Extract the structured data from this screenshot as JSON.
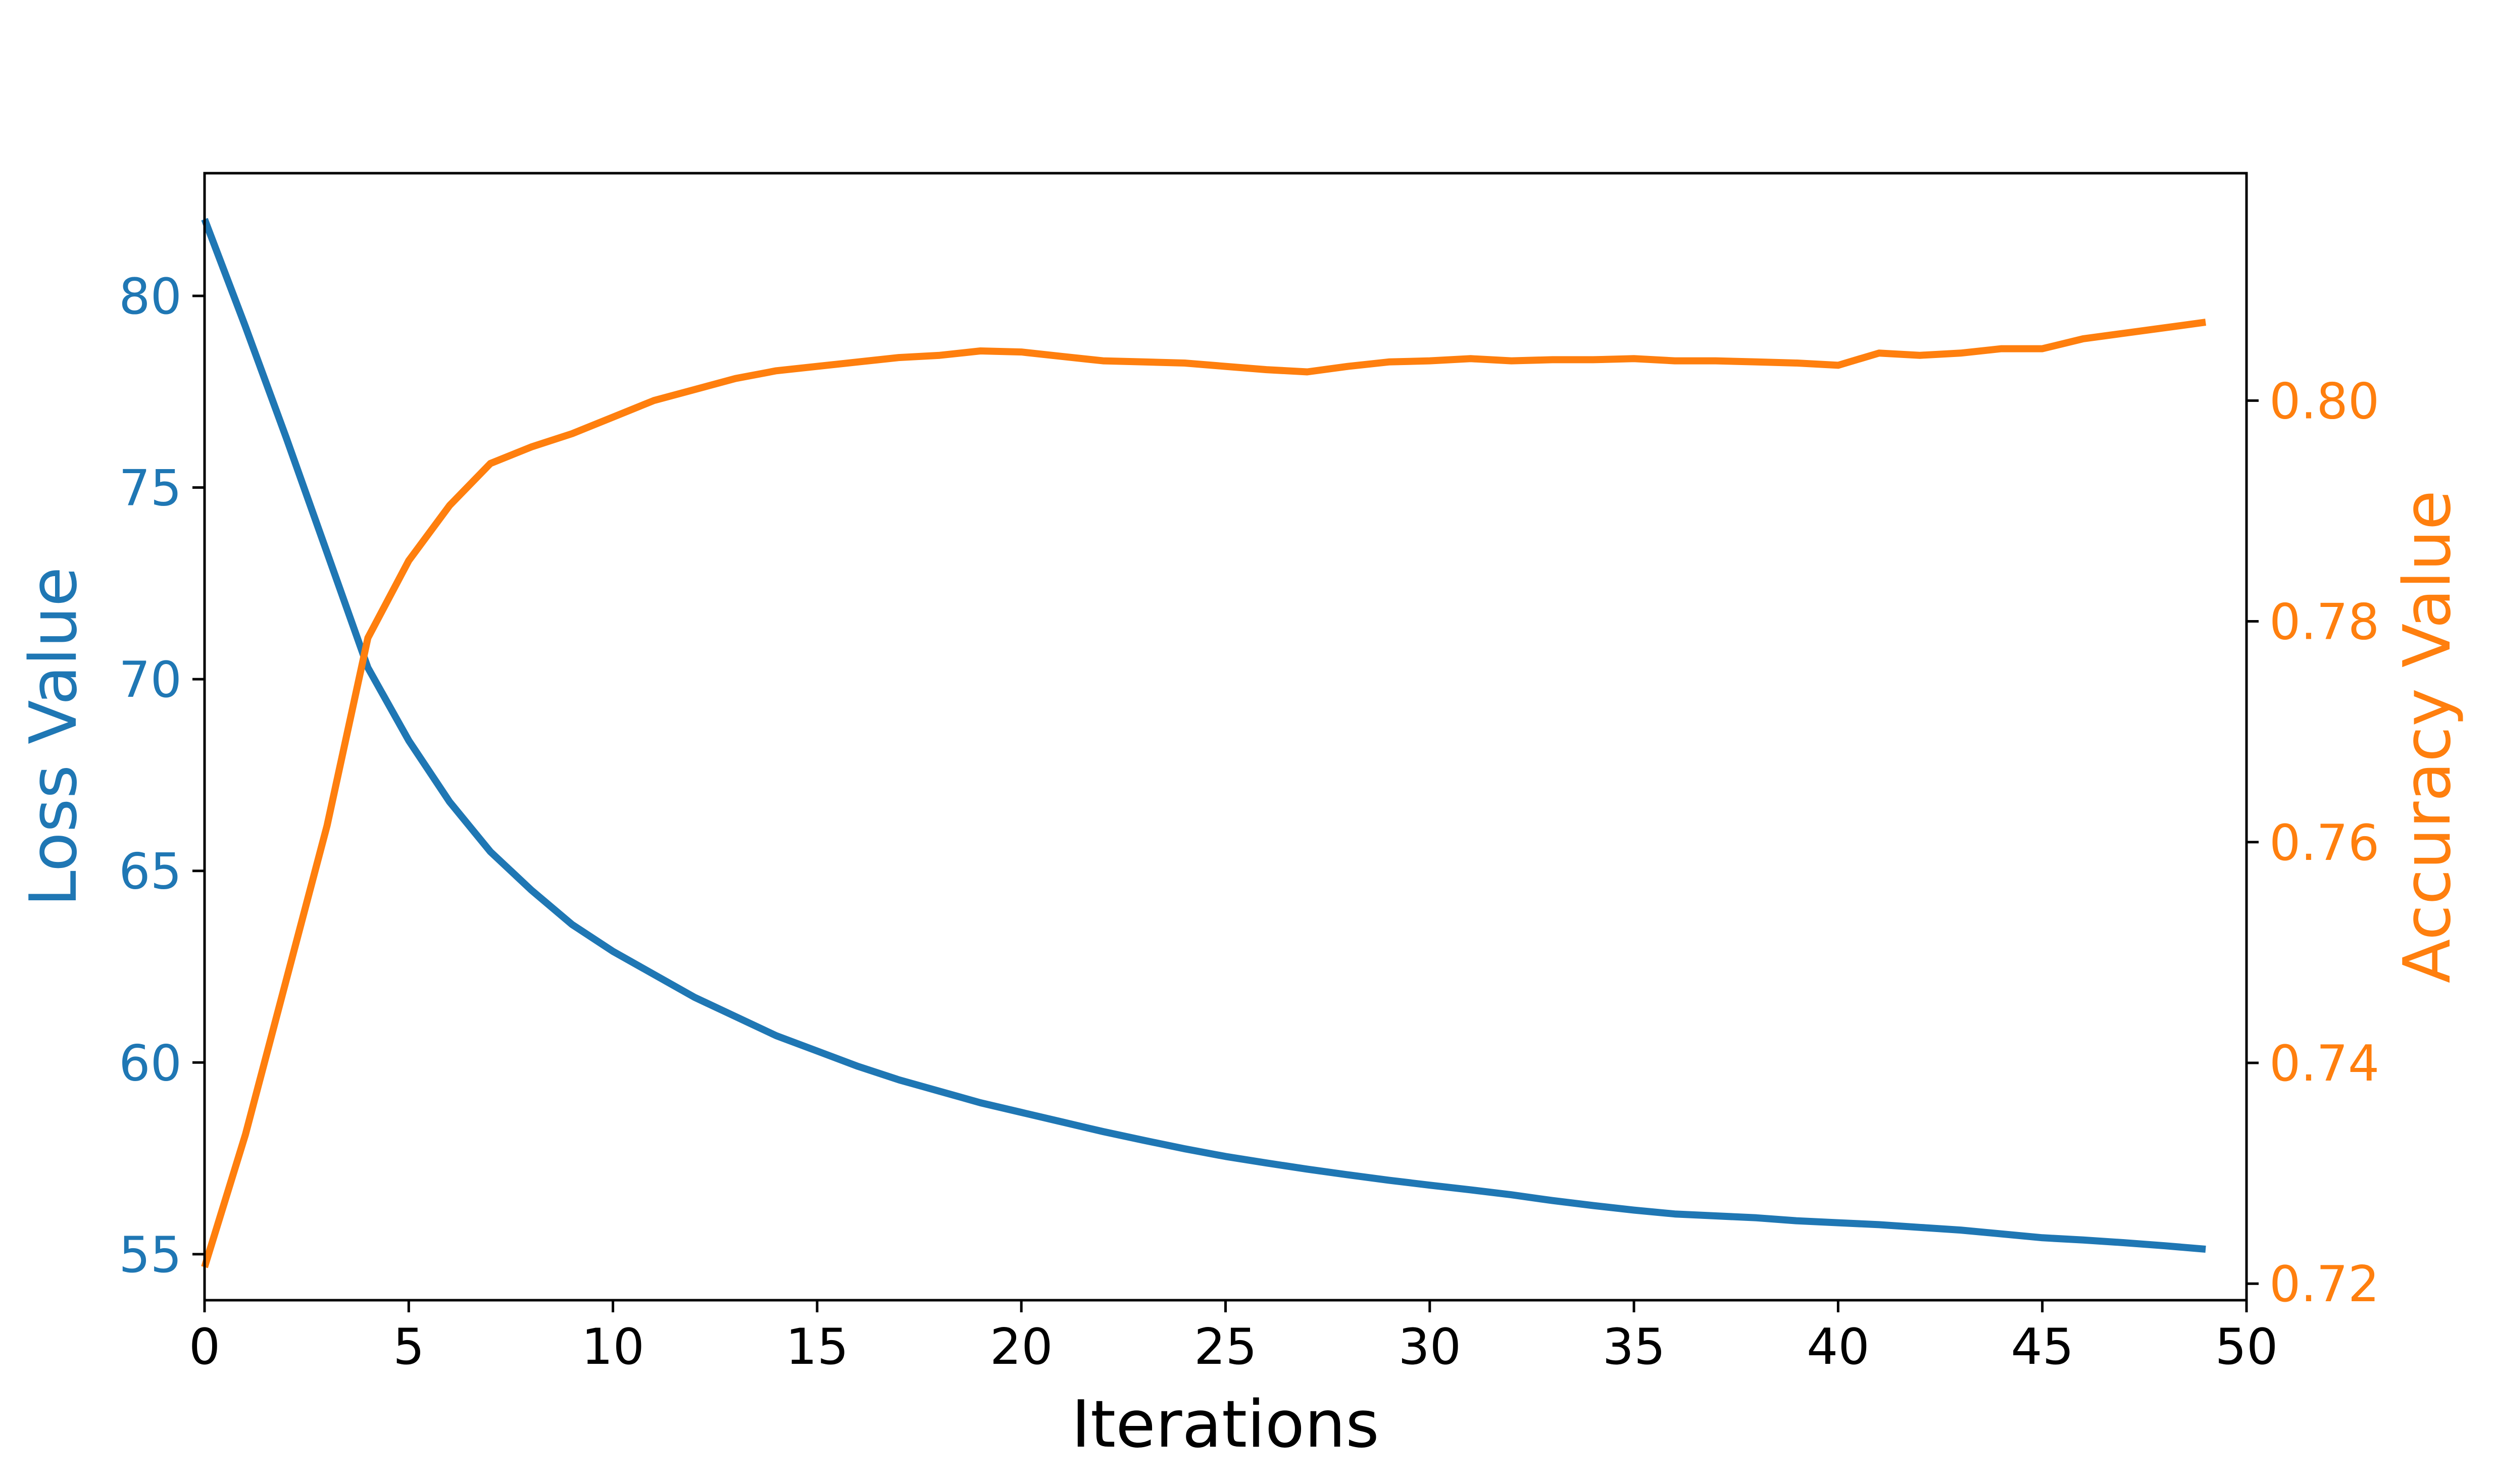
{
  "chart_data": {
    "type": "line",
    "title": "",
    "xlabel": "Iterations",
    "ylabel_left": "Loss Value",
    "ylabel_right": "Accuracy Value",
    "xlim": [
      0,
      50
    ],
    "ylim_left": [
      53.8,
      83.2
    ],
    "ylim_right": [
      0.7185,
      0.8206
    ],
    "x_ticks": [
      0,
      5,
      10,
      15,
      20,
      25,
      30,
      35,
      40,
      45,
      50
    ],
    "y_left_ticks": [
      55,
      60,
      65,
      70,
      75,
      80
    ],
    "y_right_ticks": [
      0.72,
      0.74,
      0.76,
      0.78,
      0.8
    ],
    "y_right_tick_labels": [
      "0.72",
      "0.74",
      "0.76",
      "0.78",
      "0.80"
    ],
    "grid": false,
    "legend": "none",
    "x": [
      0,
      1,
      2,
      3,
      4,
      5,
      6,
      7,
      8,
      9,
      10,
      11,
      12,
      13,
      14,
      15,
      16,
      17,
      18,
      19,
      20,
      21,
      22,
      23,
      24,
      25,
      26,
      27,
      28,
      29,
      30,
      31,
      32,
      33,
      34,
      35,
      36,
      37,
      38,
      39,
      40,
      41,
      42,
      43,
      44,
      45,
      46,
      47,
      48,
      49
    ],
    "series": [
      {
        "axis": "left",
        "color": "#1f77b4",
        "values": [
          82.0,
          79.2,
          76.3,
          73.3,
          70.3,
          68.4,
          66.8,
          65.5,
          64.5,
          63.6,
          62.9,
          62.3,
          61.7,
          61.2,
          60.7,
          60.3,
          59.9,
          59.55,
          59.25,
          58.95,
          58.7,
          58.45,
          58.2,
          57.97,
          57.75,
          57.55,
          57.38,
          57.22,
          57.07,
          56.93,
          56.8,
          56.68,
          56.55,
          56.4,
          56.27,
          56.15,
          56.05,
          56.0,
          55.95,
          55.87,
          55.82,
          55.77,
          55.7,
          55.63,
          55.53,
          55.43,
          55.37,
          55.3,
          55.22,
          55.13
        ]
      },
      {
        "axis": "right",
        "color": "#ff7f0e",
        "values": [
          0.7215,
          0.7335,
          0.7475,
          0.7615,
          0.7785,
          0.7855,
          0.7905,
          0.7943,
          0.7958,
          0.797,
          0.7985,
          0.8,
          0.801,
          0.802,
          0.8027,
          0.8031,
          0.8035,
          0.8039,
          0.8041,
          0.8045,
          0.8044,
          0.804,
          0.8036,
          0.8035,
          0.8034,
          0.8031,
          0.8028,
          0.8026,
          0.8031,
          0.8035,
          0.8036,
          0.8038,
          0.8036,
          0.8037,
          0.8037,
          0.8038,
          0.8036,
          0.8036,
          0.8035,
          0.8034,
          0.8032,
          0.8043,
          0.8041,
          0.8043,
          0.8047,
          0.8047,
          0.8056,
          0.8061,
          0.8066,
          0.8071
        ]
      }
    ]
  }
}
